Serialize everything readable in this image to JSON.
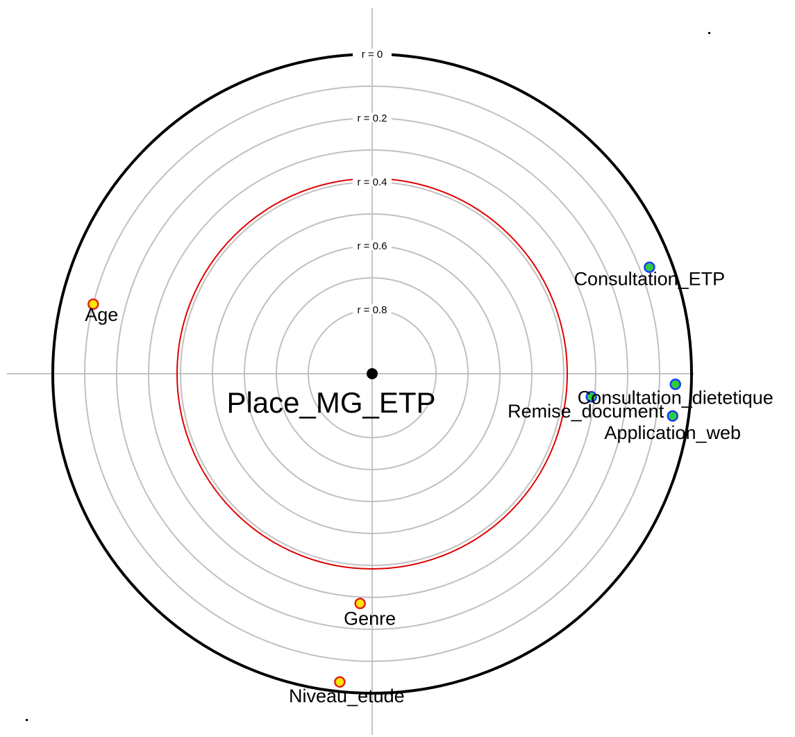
{
  "chart_data": {
    "type": "scatter",
    "title": "",
    "center_label": "Place_MG_ETP",
    "ring_labels": [
      "r = 0",
      "r = 0.2",
      "r = 0.4",
      "r = 0.6",
      "r = 0.8"
    ],
    "rings": [
      0,
      0.2,
      0.4,
      0.6,
      0.8
    ],
    "threshold_ring": 0.4,
    "points": [
      {
        "label": "Age",
        "r": 0.1,
        "angle_deg": 166,
        "fill": "#ffe600",
        "stroke": "#e02020"
      },
      {
        "label": "Consultation_ETP",
        "r": 0.07,
        "angle_deg": 21,
        "fill": "#2ecc40",
        "stroke": "#1a3cff"
      },
      {
        "label": "Consultation_dietetique",
        "r": 0.05,
        "angle_deg": -2,
        "fill": "#2ecc40",
        "stroke": "#1a3cff"
      },
      {
        "label": "Remise_document",
        "r": 0.31,
        "angle_deg": -6,
        "fill": "#2ecc40",
        "stroke": "#1a3cff"
      },
      {
        "label": "Application_web",
        "r": 0.05,
        "angle_deg": -8,
        "fill": "#2ecc40",
        "stroke": "#1a3cff"
      },
      {
        "label": "Genre",
        "r": 0.28,
        "angle_deg": -93,
        "fill": "#ffe600",
        "stroke": "#e02020"
      },
      {
        "label": "Niveau_etude",
        "r": 0.03,
        "angle_deg": -96,
        "fill": "#ffe600",
        "stroke": "#e02020"
      }
    ],
    "colors": {
      "outer_circle": "#000000",
      "inner_rings": "#c0c0c0",
      "threshold": "#e00000",
      "axes": "#b0b0b0"
    }
  }
}
